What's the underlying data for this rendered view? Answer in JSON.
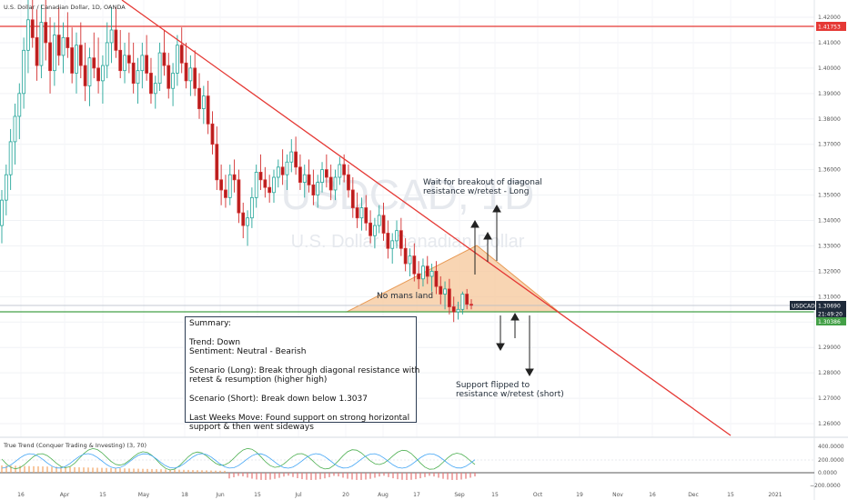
{
  "header": {
    "instrument": "U.S. Dollar / Canadian Dollar, 1D, OANDA"
  },
  "watermark": {
    "symbol": "USDCAD, 1D",
    "name": "U.S. Dollar / Canadian Dollar"
  },
  "badges": {
    "symbol": "USDCAD",
    "symbol_price": "1.30690",
    "countdown": "21:49:20",
    "support_price": "1.30386",
    "resistance_price": "1.41753"
  },
  "annotations": {
    "breakout_note": "Wait for breakout of diagonal\nresistance w/retest - Long",
    "no_mans_land": "No mans land",
    "support_note": "Support flipped to\nresistance w/retest (short)"
  },
  "summary": {
    "lines": [
      "Summary:",
      "",
      "Trend: Down",
      "Sentiment: Neutral - Bearish",
      "",
      "Scenario (Long): Break through diagonal resistance with",
      "retest & resumption (higher high)",
      "",
      "Scenario (Short): Break down below 1.3037",
      "",
      "Last Weeks Move: Found support on strong horizontal",
      "support & then went sideways"
    ]
  },
  "indicator": {
    "title": "True Trend (Conquer Trading & Investing) (3, 70)",
    "axis_labels": [
      "400.0000",
      "200.0000",
      "0.0000",
      "−200.0000"
    ]
  },
  "colors": {
    "resistance": "#e53935",
    "support": "#43a047",
    "triangle_fill": "#f5c79a",
    "triangle_stroke": "#e89a55",
    "bull": "#26a69a",
    "bear": "#d32f2f",
    "candle_body_bull": "#ffffff",
    "candle_body_bear": "#b71c1c",
    "arrow": "#222222",
    "badge_dark": "#1e2a3a"
  },
  "chart_data": {
    "type": "candlestick",
    "title": "U.S. Dollar / Canadian Dollar, 1D, OANDA",
    "y_range": [
      1.255,
      1.425
    ],
    "y_ticks": [
      "1.42000",
      "1.41000",
      "1.40000",
      "1.39000",
      "1.38000",
      "1.37000",
      "1.36000",
      "1.35000",
      "1.34000",
      "1.33000",
      "1.32000",
      "1.31000",
      "1.30000",
      "1.29000",
      "1.28000",
      "1.27000",
      "1.26000"
    ],
    "x_tick_labels": [
      "16",
      "Apr",
      "15",
      "May",
      "18",
      "Jun",
      "15",
      "Jul",
      "20",
      "Aug",
      "17",
      "Sep",
      "15",
      "Oct",
      "19",
      "Nov",
      "16",
      "Dec",
      "15",
      "2021",
      "15"
    ],
    "horizontal_levels": [
      {
        "value": 1.41753
      },
      {
        "value": 1.30386
      }
    ],
    "trendline": [
      {
        "date": "2020-03-30",
        "price": 1.427
      },
      {
        "date": "2020-12-20",
        "price": 1.255
      }
    ],
    "candles": [
      {
        "o": 1.338,
        "h": 1.352,
        "l": 1.331,
        "c": 1.348
      },
      {
        "o": 1.348,
        "h": 1.362,
        "l": 1.342,
        "c": 1.358
      },
      {
        "o": 1.358,
        "h": 1.376,
        "l": 1.352,
        "c": 1.371
      },
      {
        "o": 1.371,
        "h": 1.386,
        "l": 1.362,
        "c": 1.381
      },
      {
        "o": 1.381,
        "h": 1.394,
        "l": 1.372,
        "c": 1.39
      },
      {
        "o": 1.39,
        "h": 1.412,
        "l": 1.384,
        "c": 1.407
      },
      {
        "o": 1.407,
        "h": 1.427,
        "l": 1.398,
        "c": 1.419
      },
      {
        "o": 1.419,
        "h": 1.432,
        "l": 1.408,
        "c": 1.412
      },
      {
        "o": 1.412,
        "h": 1.423,
        "l": 1.395,
        "c": 1.401
      },
      {
        "o": 1.401,
        "h": 1.425,
        "l": 1.396,
        "c": 1.418
      },
      {
        "o": 1.418,
        "h": 1.429,
        "l": 1.403,
        "c": 1.41
      },
      {
        "o": 1.41,
        "h": 1.42,
        "l": 1.39,
        "c": 1.399
      },
      {
        "o": 1.399,
        "h": 1.418,
        "l": 1.393,
        "c": 1.413
      },
      {
        "o": 1.413,
        "h": 1.424,
        "l": 1.401,
        "c": 1.405
      },
      {
        "o": 1.405,
        "h": 1.418,
        "l": 1.398,
        "c": 1.412
      },
      {
        "o": 1.412,
        "h": 1.422,
        "l": 1.404,
        "c": 1.408
      },
      {
        "o": 1.408,
        "h": 1.416,
        "l": 1.394,
        "c": 1.398
      },
      {
        "o": 1.398,
        "h": 1.414,
        "l": 1.39,
        "c": 1.409
      },
      {
        "o": 1.409,
        "h": 1.418,
        "l": 1.396,
        "c": 1.401
      },
      {
        "o": 1.401,
        "h": 1.41,
        "l": 1.387,
        "c": 1.393
      },
      {
        "o": 1.393,
        "h": 1.408,
        "l": 1.385,
        "c": 1.404
      },
      {
        "o": 1.404,
        "h": 1.414,
        "l": 1.396,
        "c": 1.4
      },
      {
        "o": 1.4,
        "h": 1.412,
        "l": 1.39,
        "c": 1.395
      },
      {
        "o": 1.395,
        "h": 1.405,
        "l": 1.386,
        "c": 1.401
      },
      {
        "o": 1.401,
        "h": 1.418,
        "l": 1.396,
        "c": 1.41
      },
      {
        "o": 1.41,
        "h": 1.424,
        "l": 1.402,
        "c": 1.415
      },
      {
        "o": 1.415,
        "h": 1.424,
        "l": 1.404,
        "c": 1.407
      },
      {
        "o": 1.407,
        "h": 1.415,
        "l": 1.396,
        "c": 1.399
      },
      {
        "o": 1.399,
        "h": 1.41,
        "l": 1.394,
        "c": 1.405
      },
      {
        "o": 1.405,
        "h": 1.414,
        "l": 1.398,
        "c": 1.402
      },
      {
        "o": 1.402,
        "h": 1.41,
        "l": 1.39,
        "c": 1.394
      },
      {
        "o": 1.394,
        "h": 1.404,
        "l": 1.386,
        "c": 1.399
      },
      {
        "o": 1.399,
        "h": 1.41,
        "l": 1.392,
        "c": 1.405
      },
      {
        "o": 1.405,
        "h": 1.413,
        "l": 1.395,
        "c": 1.398
      },
      {
        "o": 1.398,
        "h": 1.404,
        "l": 1.386,
        "c": 1.39
      },
      {
        "o": 1.39,
        "h": 1.397,
        "l": 1.384,
        "c": 1.394
      },
      {
        "o": 1.394,
        "h": 1.41,
        "l": 1.391,
        "c": 1.406
      },
      {
        "o": 1.406,
        "h": 1.415,
        "l": 1.397,
        "c": 1.401
      },
      {
        "o": 1.401,
        "h": 1.406,
        "l": 1.388,
        "c": 1.392
      },
      {
        "o": 1.392,
        "h": 1.402,
        "l": 1.385,
        "c": 1.398
      },
      {
        "o": 1.398,
        "h": 1.413,
        "l": 1.393,
        "c": 1.409
      },
      {
        "o": 1.409,
        "h": 1.416,
        "l": 1.398,
        "c": 1.402
      },
      {
        "o": 1.402,
        "h": 1.41,
        "l": 1.392,
        "c": 1.395
      },
      {
        "o": 1.395,
        "h": 1.405,
        "l": 1.389,
        "c": 1.4
      },
      {
        "o": 1.4,
        "h": 1.407,
        "l": 1.389,
        "c": 1.392
      },
      {
        "o": 1.392,
        "h": 1.398,
        "l": 1.38,
        "c": 1.384
      },
      {
        "o": 1.384,
        "h": 1.393,
        "l": 1.378,
        "c": 1.389
      },
      {
        "o": 1.389,
        "h": 1.395,
        "l": 1.374,
        "c": 1.378
      },
      {
        "o": 1.378,
        "h": 1.383,
        "l": 1.366,
        "c": 1.37
      },
      {
        "o": 1.37,
        "h": 1.377,
        "l": 1.352,
        "c": 1.356
      },
      {
        "o": 1.356,
        "h": 1.362,
        "l": 1.346,
        "c": 1.352
      },
      {
        "o": 1.352,
        "h": 1.358,
        "l": 1.345,
        "c": 1.349
      },
      {
        "o": 1.349,
        "h": 1.362,
        "l": 1.346,
        "c": 1.358
      },
      {
        "o": 1.358,
        "h": 1.364,
        "l": 1.351,
        "c": 1.356
      },
      {
        "o": 1.356,
        "h": 1.36,
        "l": 1.339,
        "c": 1.343
      },
      {
        "o": 1.343,
        "h": 1.347,
        "l": 1.333,
        "c": 1.338
      },
      {
        "o": 1.338,
        "h": 1.344,
        "l": 1.33,
        "c": 1.341
      },
      {
        "o": 1.341,
        "h": 1.353,
        "l": 1.337,
        "c": 1.349
      },
      {
        "o": 1.349,
        "h": 1.362,
        "l": 1.345,
        "c": 1.359
      },
      {
        "o": 1.359,
        "h": 1.366,
        "l": 1.352,
        "c": 1.356
      },
      {
        "o": 1.356,
        "h": 1.361,
        "l": 1.349,
        "c": 1.353
      },
      {
        "o": 1.353,
        "h": 1.358,
        "l": 1.347,
        "c": 1.351
      },
      {
        "o": 1.351,
        "h": 1.36,
        "l": 1.347,
        "c": 1.357
      },
      {
        "o": 1.357,
        "h": 1.364,
        "l": 1.353,
        "c": 1.361
      },
      {
        "o": 1.361,
        "h": 1.368,
        "l": 1.354,
        "c": 1.358
      },
      {
        "o": 1.358,
        "h": 1.366,
        "l": 1.352,
        "c": 1.363
      },
      {
        "o": 1.363,
        "h": 1.372,
        "l": 1.359,
        "c": 1.367
      },
      {
        "o": 1.367,
        "h": 1.373,
        "l": 1.358,
        "c": 1.361
      },
      {
        "o": 1.361,
        "h": 1.366,
        "l": 1.352,
        "c": 1.355
      },
      {
        "o": 1.355,
        "h": 1.362,
        "l": 1.349,
        "c": 1.358
      },
      {
        "o": 1.358,
        "h": 1.364,
        "l": 1.351,
        "c": 1.354
      },
      {
        "o": 1.354,
        "h": 1.36,
        "l": 1.346,
        "c": 1.35
      },
      {
        "o": 1.35,
        "h": 1.358,
        "l": 1.345,
        "c": 1.355
      },
      {
        "o": 1.355,
        "h": 1.363,
        "l": 1.351,
        "c": 1.36
      },
      {
        "o": 1.36,
        "h": 1.366,
        "l": 1.353,
        "c": 1.357
      },
      {
        "o": 1.357,
        "h": 1.362,
        "l": 1.348,
        "c": 1.352
      },
      {
        "o": 1.352,
        "h": 1.36,
        "l": 1.348,
        "c": 1.357
      },
      {
        "o": 1.357,
        "h": 1.365,
        "l": 1.354,
        "c": 1.362
      },
      {
        "o": 1.362,
        "h": 1.366,
        "l": 1.355,
        "c": 1.358
      },
      {
        "o": 1.358,
        "h": 1.362,
        "l": 1.349,
        "c": 1.352
      },
      {
        "o": 1.352,
        "h": 1.357,
        "l": 1.341,
        "c": 1.345
      },
      {
        "o": 1.345,
        "h": 1.351,
        "l": 1.337,
        "c": 1.341
      },
      {
        "o": 1.341,
        "h": 1.349,
        "l": 1.336,
        "c": 1.345
      },
      {
        "o": 1.345,
        "h": 1.35,
        "l": 1.336,
        "c": 1.339
      },
      {
        "o": 1.339,
        "h": 1.344,
        "l": 1.331,
        "c": 1.334
      },
      {
        "o": 1.334,
        "h": 1.341,
        "l": 1.329,
        "c": 1.338
      },
      {
        "o": 1.338,
        "h": 1.346,
        "l": 1.335,
        "c": 1.342
      },
      {
        "o": 1.342,
        "h": 1.347,
        "l": 1.332,
        "c": 1.335
      },
      {
        "o": 1.335,
        "h": 1.34,
        "l": 1.325,
        "c": 1.329
      },
      {
        "o": 1.329,
        "h": 1.335,
        "l": 1.323,
        "c": 1.332
      },
      {
        "o": 1.332,
        "h": 1.34,
        "l": 1.329,
        "c": 1.336
      },
      {
        "o": 1.336,
        "h": 1.341,
        "l": 1.326,
        "c": 1.329
      },
      {
        "o": 1.329,
        "h": 1.333,
        "l": 1.32,
        "c": 1.323
      },
      {
        "o": 1.323,
        "h": 1.329,
        "l": 1.318,
        "c": 1.326
      },
      {
        "o": 1.326,
        "h": 1.331,
        "l": 1.316,
        "c": 1.319
      },
      {
        "o": 1.319,
        "h": 1.324,
        "l": 1.313,
        "c": 1.317
      },
      {
        "o": 1.317,
        "h": 1.325,
        "l": 1.314,
        "c": 1.322
      },
      {
        "o": 1.322,
        "h": 1.326,
        "l": 1.315,
        "c": 1.318
      },
      {
        "o": 1.318,
        "h": 1.323,
        "l": 1.312,
        "c": 1.32
      },
      {
        "o": 1.32,
        "h": 1.324,
        "l": 1.311,
        "c": 1.314
      },
      {
        "o": 1.314,
        "h": 1.318,
        "l": 1.307,
        "c": 1.311
      },
      {
        "o": 1.311,
        "h": 1.316,
        "l": 1.305,
        "c": 1.313
      },
      {
        "o": 1.313,
        "h": 1.317,
        "l": 1.303,
        "c": 1.306
      },
      {
        "o": 1.306,
        "h": 1.31,
        "l": 1.3,
        "c": 1.304
      },
      {
        "o": 1.304,
        "h": 1.308,
        "l": 1.301,
        "c": 1.305
      },
      {
        "o": 1.305,
        "h": 1.312,
        "l": 1.303,
        "c": 1.311
      },
      {
        "o": 1.311,
        "h": 1.313,
        "l": 1.305,
        "c": 1.307
      },
      {
        "o": 1.307,
        "h": 1.309,
        "l": 1.305,
        "c": 1.3069
      }
    ]
  }
}
